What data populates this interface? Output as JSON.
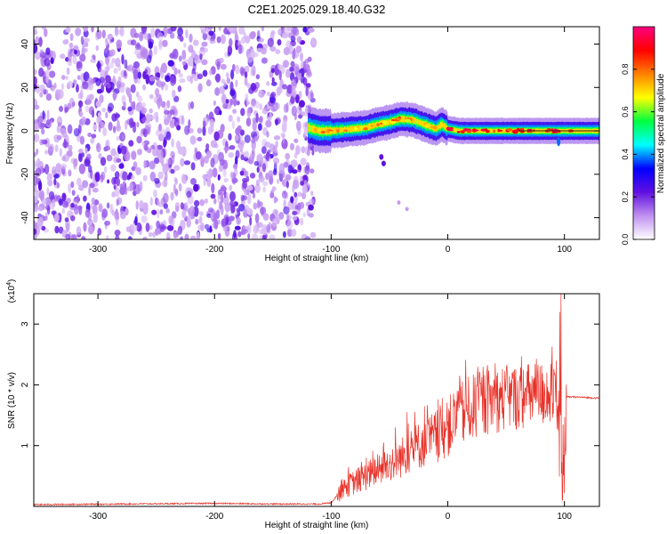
{
  "figure": {
    "title": "C2E1.2025.029.18.40.G32"
  },
  "chart_data": [
    {
      "type": "heatmap",
      "xlabel": "Height of straight line (km)",
      "ylabel": "Frequency (Hz)",
      "xlim": [
        -355,
        130
      ],
      "ylim": [
        -50,
        48
      ],
      "xticks": [
        -300,
        -200,
        -100,
        0,
        100
      ],
      "xtick_labels": [
        "-300",
        "-200",
        "-100",
        "0",
        "100"
      ],
      "yticks": [
        -40,
        -20,
        0,
        20,
        40
      ],
      "ytick_labels": [
        "-40",
        "-20",
        "0",
        "20",
        "40"
      ],
      "noise_region_x": [
        -355,
        -115
      ],
      "ridge_points": [
        [
          -120,
          1.5
        ],
        [
          -110,
          0
        ],
        [
          -100,
          0
        ],
        [
          -90,
          0.5
        ],
        [
          -80,
          1
        ],
        [
          -70,
          1.5
        ],
        [
          -60,
          3
        ],
        [
          -50,
          4
        ],
        [
          -40,
          5.5
        ],
        [
          -30,
          5
        ],
        [
          -20,
          3
        ],
        [
          -10,
          1
        ],
        [
          -5,
          3
        ],
        [
          0,
          1
        ],
        [
          10,
          0
        ],
        [
          30,
          0
        ],
        [
          60,
          0
        ],
        [
          90,
          0
        ],
        [
          95,
          0
        ],
        [
          130,
          0
        ]
      ],
      "scattered_points": [
        [
          -57,
          -12
        ],
        [
          -55,
          -15
        ],
        [
          -42,
          -33
        ],
        [
          -35,
          -36
        ]
      ],
      "colorbar": {
        "label": "Normalized spectral amplitude",
        "range": [
          0.0,
          1.0
        ],
        "ticks": [
          0.0,
          0.2,
          0.4,
          0.6,
          0.8
        ],
        "tick_labels": [
          "0.0",
          "0.2",
          "0.4",
          "0.6",
          "0.8"
        ],
        "colors": [
          "#ffffff",
          "#c090f0",
          "#6010e0",
          "#0000ff",
          "#00ffff",
          "#00ff40",
          "#ffff00",
          "#ff8000",
          "#ff0000",
          "#ff0080"
        ]
      },
      "grid": false
    },
    {
      "type": "line",
      "xlabel": "Height of straight line (km)",
      "ylabel": "SNR (10 * v/v)",
      "ymultiplier": "(x10",
      "ymultiplier_exp": "4",
      "ymultiplier_close": ")",
      "xlim": [
        -355,
        130
      ],
      "ylim": [
        0,
        3.5
      ],
      "xticks": [
        -300,
        -200,
        -100,
        0,
        100
      ],
      "xtick_labels": [
        "-300",
        "-200",
        "-100",
        "0",
        "100"
      ],
      "yticks": [
        1,
        2,
        3
      ],
      "ytick_labels": [
        "1",
        "2",
        "3"
      ],
      "series": [
        {
          "color": "#e8332a",
          "envelope": [
            [
              -355,
              0.03
            ],
            [
              -200,
              0.05
            ],
            [
              -150,
              0.04
            ],
            [
              -110,
              0.04
            ],
            [
              -100,
              0.06
            ],
            [
              -90,
              0.3
            ],
            [
              -80,
              0.4
            ],
            [
              -70,
              0.5
            ],
            [
              -60,
              0.6
            ],
            [
              -50,
              0.7
            ],
            [
              -40,
              0.8
            ],
            [
              -30,
              0.95
            ],
            [
              -20,
              1.05
            ],
            [
              -10,
              1.15
            ],
            [
              0,
              1.3
            ],
            [
              10,
              1.5
            ],
            [
              20,
              1.62
            ],
            [
              30,
              1.7
            ],
            [
              40,
              1.75
            ],
            [
              50,
              1.78
            ],
            [
              60,
              1.8
            ],
            [
              70,
              1.82
            ],
            [
              80,
              1.85
            ],
            [
              90,
              1.85
            ],
            [
              95,
              1.2
            ],
            [
              99,
              0.6
            ],
            [
              102,
              1.8
            ],
            [
              110,
              1.8
            ],
            [
              130,
              1.78
            ]
          ],
          "spikes": [
            [
              -85,
              0.65
            ],
            [
              -70,
              0.8
            ],
            [
              -55,
              1.05
            ],
            [
              -45,
              1.3
            ],
            [
              -35,
              1.55
            ],
            [
              -28,
              1.2
            ],
            [
              -20,
              1.65
            ],
            [
              -10,
              1.3
            ],
            [
              0,
              1.4
            ],
            [
              8,
              1.9
            ],
            [
              10,
              2.15
            ],
            [
              40,
              2.0
            ],
            [
              55,
              2.2
            ],
            [
              70,
              2.05
            ],
            [
              85,
              2.2
            ],
            [
              93,
              2.4
            ],
            [
              96,
              3.2
            ],
            [
              97,
              3.5
            ],
            [
              98,
              0.1
            ]
          ]
        }
      ],
      "grid": false
    }
  ]
}
